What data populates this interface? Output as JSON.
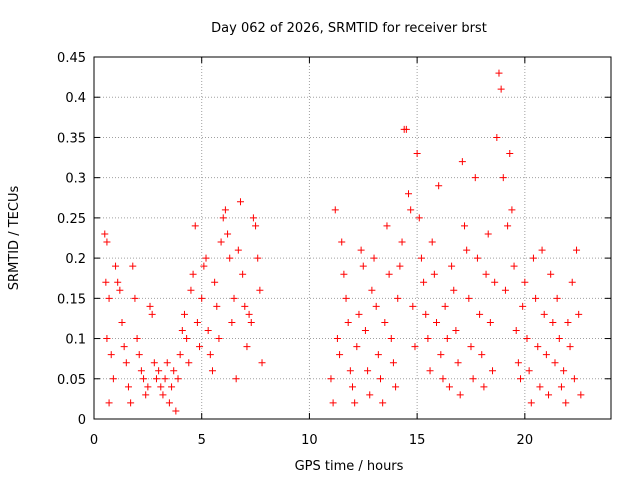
{
  "chart_data": {
    "type": "scatter",
    "title": "Day 062 of 2026, SRMTID for receiver brst",
    "xlabel": "GPS time / hours",
    "ylabel": "SRMTID / TECUs",
    "xlim": [
      0,
      24
    ],
    "ylim": [
      0,
      0.45
    ],
    "xticks": [
      "0",
      "5",
      "10",
      "15",
      "20"
    ],
    "xtick_values": [
      0,
      5,
      10,
      15,
      20
    ],
    "yticks": [
      "0",
      "0.05",
      "0.1",
      "0.15",
      "0.2",
      "0.25",
      "0.3",
      "0.35",
      "0.4",
      "0.45"
    ],
    "ytick_values": [
      0,
      0.05,
      0.1,
      0.15,
      0.2,
      0.25,
      0.3,
      0.35,
      0.4,
      0.45
    ],
    "grid": true,
    "marker": "+",
    "series": [
      {
        "name": "brst",
        "color": "#ff0000",
        "points": [
          [
            0.5,
            0.23
          ],
          [
            0.6,
            0.22
          ],
          [
            0.55,
            0.17
          ],
          [
            0.7,
            0.15
          ],
          [
            0.6,
            0.1
          ],
          [
            0.8,
            0.08
          ],
          [
            0.9,
            0.05
          ],
          [
            0.7,
            0.02
          ],
          [
            1.0,
            0.19
          ],
          [
            1.1,
            0.17
          ],
          [
            1.2,
            0.16
          ],
          [
            1.3,
            0.12
          ],
          [
            1.4,
            0.09
          ],
          [
            1.5,
            0.07
          ],
          [
            1.6,
            0.04
          ],
          [
            1.7,
            0.02
          ],
          [
            1.8,
            0.19
          ],
          [
            1.9,
            0.15
          ],
          [
            2.0,
            0.1
          ],
          [
            2.1,
            0.08
          ],
          [
            2.2,
            0.06
          ],
          [
            2.3,
            0.05
          ],
          [
            2.4,
            0.03
          ],
          [
            2.5,
            0.04
          ],
          [
            2.6,
            0.14
          ],
          [
            2.7,
            0.13
          ],
          [
            2.8,
            0.07
          ],
          [
            2.9,
            0.05
          ],
          [
            3.0,
            0.06
          ],
          [
            3.1,
            0.04
          ],
          [
            3.2,
            0.03
          ],
          [
            3.3,
            0.05
          ],
          [
            3.4,
            0.07
          ],
          [
            3.5,
            0.02
          ],
          [
            3.6,
            0.04
          ],
          [
            3.7,
            0.06
          ],
          [
            3.8,
            0.01
          ],
          [
            3.9,
            0.05
          ],
          [
            4.0,
            0.08
          ],
          [
            4.1,
            0.11
          ],
          [
            4.2,
            0.13
          ],
          [
            4.3,
            0.1
          ],
          [
            4.4,
            0.07
          ],
          [
            4.5,
            0.16
          ],
          [
            4.6,
            0.18
          ],
          [
            4.7,
            0.24
          ],
          [
            4.8,
            0.12
          ],
          [
            4.9,
            0.09
          ],
          [
            5.0,
            0.15
          ],
          [
            5.1,
            0.19
          ],
          [
            5.2,
            0.2
          ],
          [
            5.3,
            0.11
          ],
          [
            5.4,
            0.08
          ],
          [
            5.5,
            0.06
          ],
          [
            5.6,
            0.17
          ],
          [
            5.7,
            0.14
          ],
          [
            5.8,
            0.1
          ],
          [
            5.9,
            0.22
          ],
          [
            6.0,
            0.25
          ],
          [
            6.1,
            0.26
          ],
          [
            6.2,
            0.23
          ],
          [
            6.3,
            0.2
          ],
          [
            6.4,
            0.12
          ],
          [
            6.5,
            0.15
          ],
          [
            6.6,
            0.05
          ],
          [
            6.7,
            0.21
          ],
          [
            6.8,
            0.27
          ],
          [
            6.9,
            0.18
          ],
          [
            7.0,
            0.14
          ],
          [
            7.1,
            0.09
          ],
          [
            7.2,
            0.13
          ],
          [
            7.3,
            0.12
          ],
          [
            7.4,
            0.25
          ],
          [
            7.5,
            0.24
          ],
          [
            7.6,
            0.2
          ],
          [
            7.7,
            0.16
          ],
          [
            7.8,
            0.07
          ],
          [
            11.0,
            0.05
          ],
          [
            11.1,
            0.02
          ],
          [
            11.2,
            0.26
          ],
          [
            11.3,
            0.1
          ],
          [
            11.4,
            0.08
          ],
          [
            11.5,
            0.22
          ],
          [
            11.6,
            0.18
          ],
          [
            11.7,
            0.15
          ],
          [
            11.8,
            0.12
          ],
          [
            11.9,
            0.06
          ],
          [
            12.0,
            0.04
          ],
          [
            12.1,
            0.02
          ],
          [
            12.2,
            0.09
          ],
          [
            12.3,
            0.13
          ],
          [
            12.4,
            0.21
          ],
          [
            12.5,
            0.19
          ],
          [
            12.6,
            0.11
          ],
          [
            12.7,
            0.06
          ],
          [
            12.8,
            0.03
          ],
          [
            12.9,
            0.16
          ],
          [
            13.0,
            0.2
          ],
          [
            13.1,
            0.14
          ],
          [
            13.2,
            0.08
          ],
          [
            13.3,
            0.05
          ],
          [
            13.4,
            0.02
          ],
          [
            13.5,
            0.12
          ],
          [
            13.6,
            0.24
          ],
          [
            13.7,
            0.18
          ],
          [
            13.8,
            0.1
          ],
          [
            13.9,
            0.07
          ],
          [
            14.0,
            0.04
          ],
          [
            14.1,
            0.15
          ],
          [
            14.2,
            0.19
          ],
          [
            14.3,
            0.22
          ],
          [
            14.4,
            0.36
          ],
          [
            14.5,
            0.36
          ],
          [
            14.6,
            0.28
          ],
          [
            14.7,
            0.26
          ],
          [
            14.8,
            0.14
          ],
          [
            14.9,
            0.09
          ],
          [
            15.0,
            0.33
          ],
          [
            15.1,
            0.25
          ],
          [
            15.2,
            0.2
          ],
          [
            15.3,
            0.17
          ],
          [
            15.4,
            0.13
          ],
          [
            15.5,
            0.1
          ],
          [
            15.6,
            0.06
          ],
          [
            15.7,
            0.22
          ],
          [
            15.8,
            0.18
          ],
          [
            15.9,
            0.12
          ],
          [
            16.0,
            0.29
          ],
          [
            16.1,
            0.08
          ],
          [
            16.2,
            0.05
          ],
          [
            16.3,
            0.14
          ],
          [
            16.4,
            0.1
          ],
          [
            16.5,
            0.04
          ],
          [
            16.6,
            0.19
          ],
          [
            16.7,
            0.16
          ],
          [
            16.8,
            0.11
          ],
          [
            16.9,
            0.07
          ],
          [
            17.0,
            0.03
          ],
          [
            17.1,
            0.32
          ],
          [
            17.2,
            0.24
          ],
          [
            17.3,
            0.21
          ],
          [
            17.4,
            0.15
          ],
          [
            17.5,
            0.09
          ],
          [
            17.6,
            0.05
          ],
          [
            17.7,
            0.3
          ],
          [
            17.8,
            0.2
          ],
          [
            17.9,
            0.13
          ],
          [
            18.0,
            0.08
          ],
          [
            18.1,
            0.04
          ],
          [
            18.2,
            0.18
          ],
          [
            18.3,
            0.23
          ],
          [
            18.4,
            0.12
          ],
          [
            18.5,
            0.06
          ],
          [
            18.6,
            0.17
          ],
          [
            18.7,
            0.35
          ],
          [
            18.8,
            0.43
          ],
          [
            18.9,
            0.41
          ],
          [
            19.0,
            0.3
          ],
          [
            19.1,
            0.16
          ],
          [
            19.2,
            0.24
          ],
          [
            19.3,
            0.33
          ],
          [
            19.4,
            0.26
          ],
          [
            19.5,
            0.19
          ],
          [
            19.6,
            0.11
          ],
          [
            19.7,
            0.07
          ],
          [
            19.8,
            0.05
          ],
          [
            19.9,
            0.14
          ],
          [
            20.0,
            0.17
          ],
          [
            20.1,
            0.1
          ],
          [
            20.2,
            0.06
          ],
          [
            20.3,
            0.02
          ],
          [
            20.4,
            0.2
          ],
          [
            20.5,
            0.15
          ],
          [
            20.6,
            0.09
          ],
          [
            20.7,
            0.04
          ],
          [
            20.8,
            0.21
          ],
          [
            20.9,
            0.13
          ],
          [
            21.0,
            0.08
          ],
          [
            21.1,
            0.03
          ],
          [
            21.2,
            0.18
          ],
          [
            21.3,
            0.12
          ],
          [
            21.4,
            0.07
          ],
          [
            21.5,
            0.15
          ],
          [
            21.6,
            0.1
          ],
          [
            21.7,
            0.04
          ],
          [
            21.8,
            0.06
          ],
          [
            21.9,
            0.02
          ],
          [
            22.0,
            0.12
          ],
          [
            22.1,
            0.09
          ],
          [
            22.2,
            0.17
          ],
          [
            22.3,
            0.05
          ],
          [
            22.4,
            0.21
          ],
          [
            22.5,
            0.13
          ],
          [
            22.6,
            0.03
          ]
        ]
      }
    ]
  }
}
